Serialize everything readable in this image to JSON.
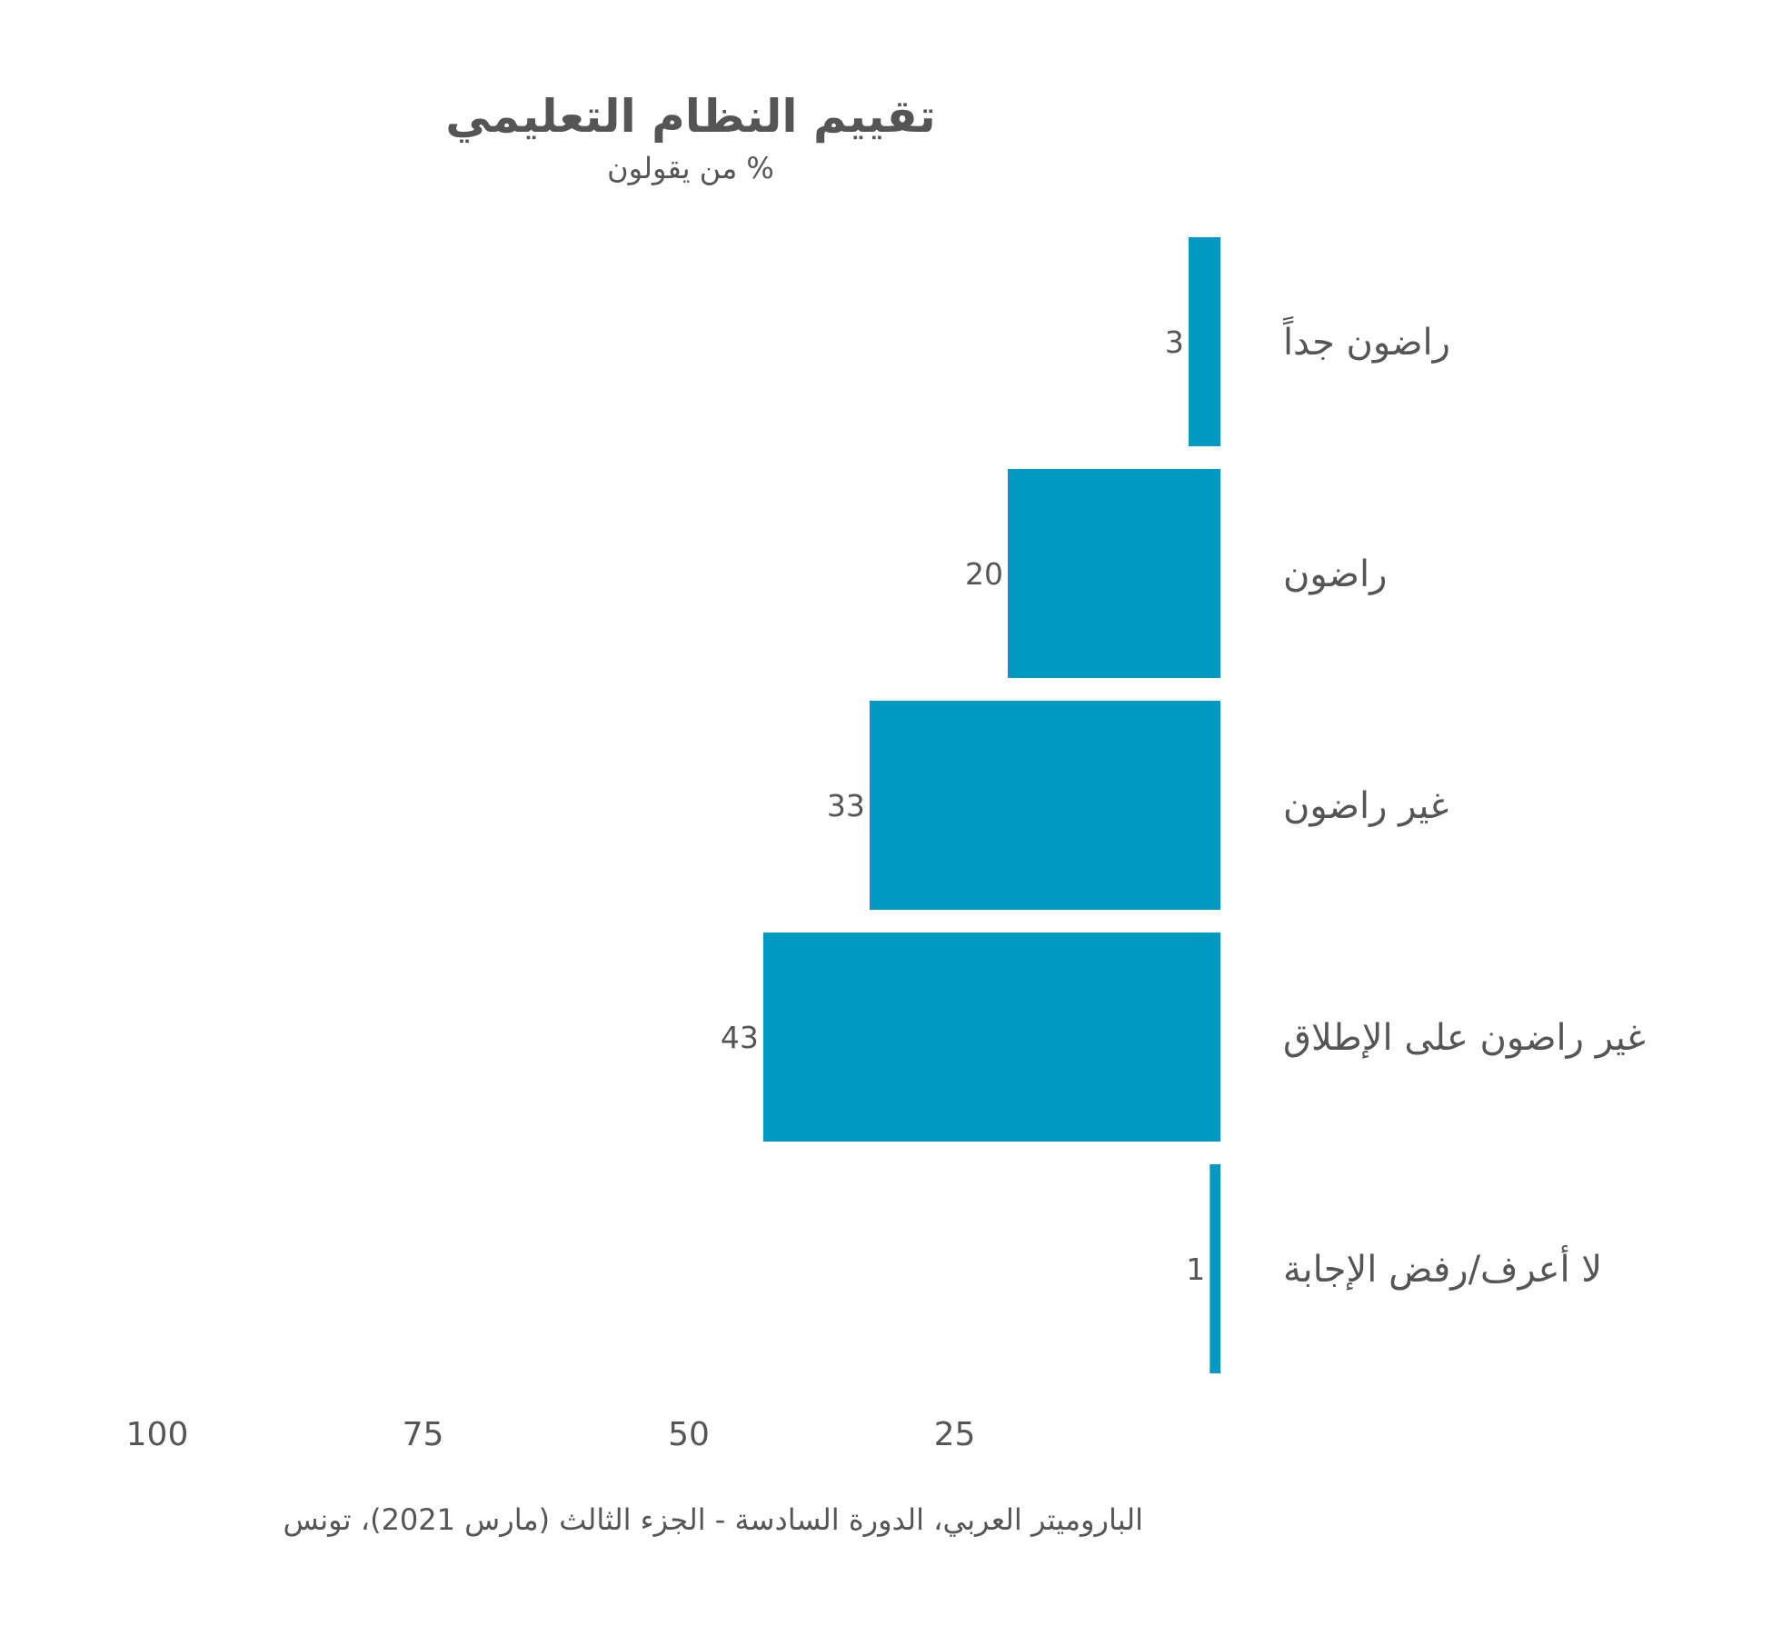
{
  "chart_data": {
    "type": "bar",
    "orientation": "horizontal",
    "direction": "right-to-left",
    "title": "تقييم النظام التعليمي",
    "subtitle": "% من يقولون",
    "categories": [
      "راضون جداً",
      "راضون",
      "غير راضون",
      "غير راضون على الإطلاق",
      "لا أعرف/رفض الإجابة"
    ],
    "values": [
      3,
      20,
      33,
      43,
      1
    ],
    "value_labels": [
      "3",
      "20",
      "33",
      "43",
      "1"
    ],
    "xlim": [
      0,
      100
    ],
    "x_ticks": [
      {
        "value": 100,
        "label": "100"
      },
      {
        "value": 75,
        "label": "75"
      },
      {
        "value": 50,
        "label": "50"
      },
      {
        "value": 25,
        "label": "25"
      }
    ],
    "grid": false,
    "bar_color": "#0099c1",
    "source": "الباروميتر العربي، الدورة السادسة - الجزء الثالث (مارس 2021)، تونس"
  }
}
